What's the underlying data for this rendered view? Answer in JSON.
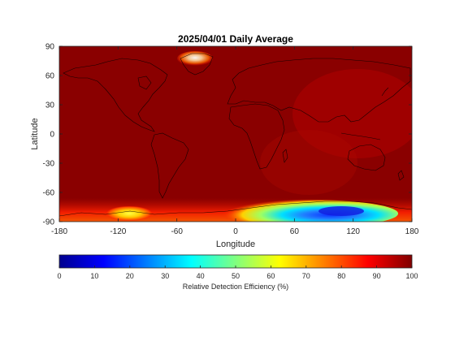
{
  "chart_data": {
    "type": "heatmap",
    "title": "2025/04/01 Daily Average",
    "xlabel": "Longitude",
    "ylabel": "Latitude",
    "xlim": [
      -180,
      180
    ],
    "ylim": [
      -90,
      90
    ],
    "xticks": [
      -180,
      -120,
      -60,
      0,
      60,
      120,
      180
    ],
    "yticks": [
      -90,
      -60,
      -30,
      0,
      30,
      60,
      90
    ],
    "colorbar": {
      "label": "Relative Detection Efficiency (%)",
      "range": [
        0,
        100
      ],
      "ticks": [
        0,
        10,
        20,
        30,
        40,
        50,
        60,
        70,
        80,
        90,
        100
      ],
      "colormap": "jet",
      "placement": "bottom"
    },
    "background_value": 100,
    "low_efficiency_regions": [
      {
        "name": "greenland",
        "lon": [
          -58,
          -28
        ],
        "lat": [
          72,
          84
        ],
        "min_value": 75
      },
      {
        "name": "antarctica-west",
        "lon": [
          -130,
          -95
        ],
        "lat": [
          -88,
          -78
        ],
        "min_value": 65
      },
      {
        "name": "antarctica-east",
        "lon": [
          0,
          155
        ],
        "lat": [
          -90,
          -70
        ],
        "min_value": 15
      }
    ]
  }
}
